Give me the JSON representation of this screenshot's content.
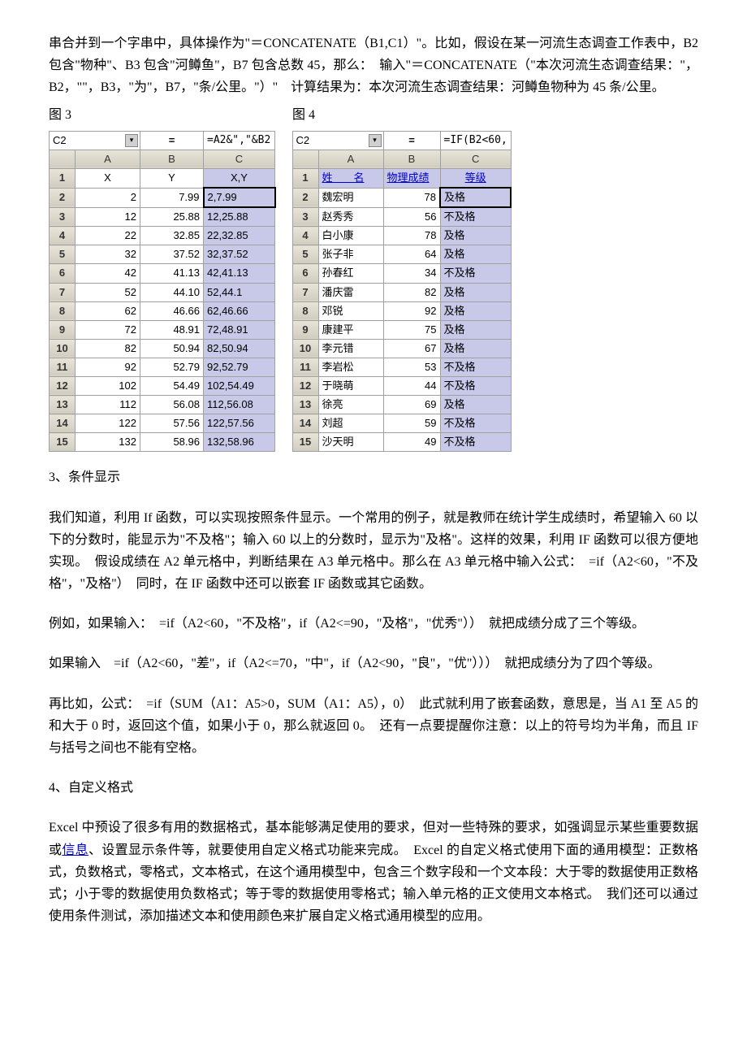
{
  "intro": {
    "p1": "串合并到一个字串中，具体操作为\"＝CONCATENATE（B1,C1）\"。比如，假设在某一河流生态调查工作表中，B2 包含\"物种\"、B3 包含\"河鳟鱼\"，B7 包含总数 45，那么：　输入\"＝CONCATENATE（\"本次河流生态调查结果：\"，B2，\"\"，B3，\"为\"，B7，\"条/公里。\"）\"　计算结果为：本次河流生态调查结果：河鳟鱼物种为 45 条/公里。",
    "fig3": "图 3",
    "fig4": "图 4"
  },
  "table3": {
    "cell": "C2",
    "formula": "=A2&\",\"&B2",
    "headers": [
      "A",
      "B",
      "C"
    ],
    "row1": [
      "X",
      "Y",
      "X,Y"
    ],
    "rows": [
      [
        "2",
        "7.99",
        "2,7.99"
      ],
      [
        "12",
        "25.88",
        "12,25.88"
      ],
      [
        "22",
        "32.85",
        "22,32.85"
      ],
      [
        "32",
        "37.52",
        "32,37.52"
      ],
      [
        "42",
        "41.13",
        "42,41.13"
      ],
      [
        "52",
        "44.10",
        "52,44.1"
      ],
      [
        "62",
        "46.66",
        "62,46.66"
      ],
      [
        "72",
        "48.91",
        "72,48.91"
      ],
      [
        "82",
        "50.94",
        "82,50.94"
      ],
      [
        "92",
        "52.79",
        "92,52.79"
      ],
      [
        "102",
        "54.49",
        "102,54.49"
      ],
      [
        "112",
        "56.08",
        "112,56.08"
      ],
      [
        "122",
        "57.56",
        "122,57.56"
      ],
      [
        "132",
        "58.96",
        "132,58.96"
      ]
    ]
  },
  "table4": {
    "cell": "C2",
    "formula": "=IF(B2<60,",
    "headers": [
      "A",
      "B",
      "C"
    ],
    "row1": [
      "姓　　名",
      "物理成绩",
      "等级"
    ],
    "rows": [
      [
        "魏宏明",
        "78",
        "及格"
      ],
      [
        "赵秀秀",
        "56",
        "不及格"
      ],
      [
        "白小康",
        "78",
        "及格"
      ],
      [
        "张子非",
        "64",
        "及格"
      ],
      [
        "孙春红",
        "34",
        "不及格"
      ],
      [
        "潘庆雷",
        "82",
        "及格"
      ],
      [
        "邓锐",
        "92",
        "及格"
      ],
      [
        "康建平",
        "75",
        "及格"
      ],
      [
        "李元错",
        "67",
        "及格"
      ],
      [
        "李岩松",
        "53",
        "不及格"
      ],
      [
        "于晓萌",
        "44",
        "不及格"
      ],
      [
        "徐亮",
        "69",
        "及格"
      ],
      [
        "刘超",
        "59",
        "不及格"
      ],
      [
        "沙天明",
        "49",
        "不及格"
      ]
    ]
  },
  "s3": {
    "h": "3、条件显示",
    "p1": "我们知道，利用 If 函数，可以实现按照条件显示。一个常用的例子，就是教师在统计学生成绩时，希望输入 60 以下的分数时，能显示为\"不及格\"；输入 60 以上的分数时，显示为\"及格\"。这样的效果，利用 IF 函数可以很方便地实现。　假设成绩在 A2 单元格中，判断结果在 A3 单元格中。那么在 A3 单元格中输入公式：　=if（A2<60，\"不及格\"，\"及格\"）　同时，在 IF 函数中还可以嵌套 IF 函数或其它函数。",
    "p2": "例如，如果输入：　=if（A2<60，\"不及格\"，if（A2<=90，\"及格\"，\"优秀\"））　就把成绩分成了三个等级。",
    "p3": "如果输入　=if（A2<60，\"差\"，if（A2<=70，\"中\"，if（A2<90，\"良\"，\"优\"）））　就把成绩分为了四个等级。",
    "p4": "再比如，公式：　=if（SUM（A1：A5>0，SUM（A1：A5），0）　此式就利用了嵌套函数，意思是，当 A1 至 A5 的和大于 0 时，返回这个值，如果小于 0，那么就返回 0。　还有一点要提醒你注意：以上的符号均为半角，而且 IF 与括号之间也不能有空格。"
  },
  "s4": {
    "h": "4、自定义格式",
    "p1a": "Excel 中预设了很多有用的数据格式，基本能够满足使用的要求，但对一些特殊的要求，如强调显示某些重要数据或",
    "link": "信息",
    "p1b": "、设置显示条件等，就要使用自定义格式功能来完成。　Excel 的自定义格式使用下面的通用模型：正数格式，负数格式，零格式，文本格式，在这个通用模型中，包含三个数字段和一个文本段：大于零的数据使用正数格式；小于零的数据使用负数格式；等于零的数据使用零格式；输入单元格的正文使用文本格式。　我们还可以通过使用条件测试，添加描述文本和使用颜色来扩展自定义格式通用模型的应用。"
  }
}
